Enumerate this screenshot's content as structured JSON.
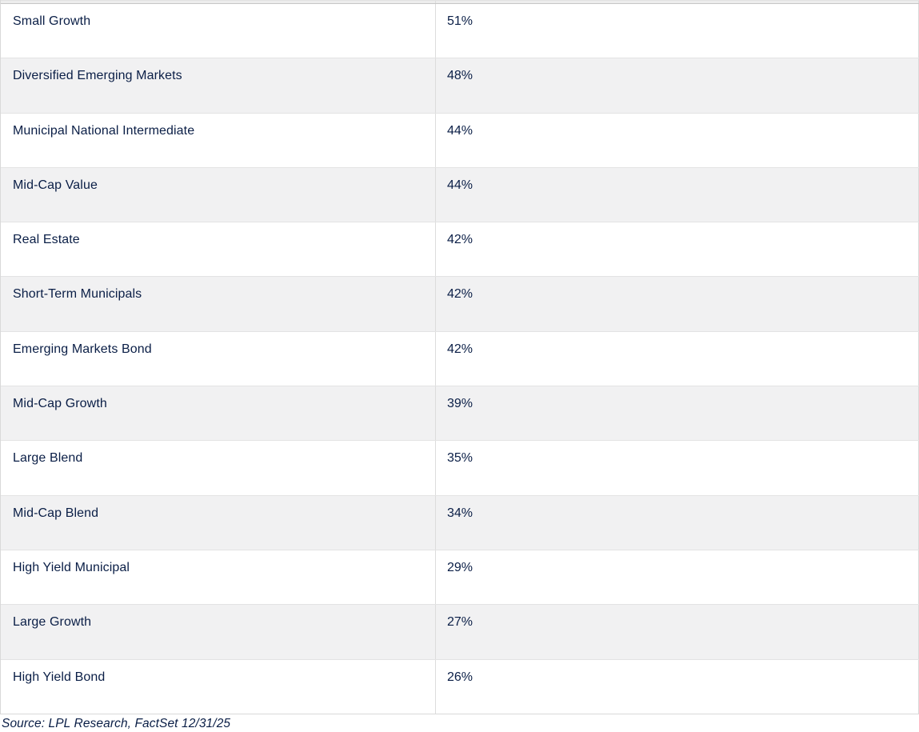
{
  "chart_data": {
    "type": "table",
    "rows": [
      {
        "category": "Small Growth",
        "value": "51%",
        "value_num": 51
      },
      {
        "category": "Diversified Emerging Markets",
        "value": "48%",
        "value_num": 48
      },
      {
        "category": "Municipal National Intermediate",
        "value": "44%",
        "value_num": 44
      },
      {
        "category": "Mid-Cap Value",
        "value": "44%",
        "value_num": 44
      },
      {
        "category": "Real Estate",
        "value": "42%",
        "value_num": 42
      },
      {
        "category": "Short-Term Municipals",
        "value": "42%",
        "value_num": 42
      },
      {
        "category": "Emerging Markets Bond",
        "value": "42%",
        "value_num": 42
      },
      {
        "category": "Mid-Cap Growth",
        "value": "39%",
        "value_num": 39
      },
      {
        "category": "Large Blend",
        "value": "35%",
        "value_num": 35
      },
      {
        "category": "Mid-Cap Blend",
        "value": "34%",
        "value_num": 34
      },
      {
        "category": "High Yield Municipal",
        "value": "29%",
        "value_num": 29
      },
      {
        "category": "Large Growth",
        "value": "27%",
        "value_num": 27
      },
      {
        "category": "High Yield Bond",
        "value": "26%",
        "value_num": 26
      }
    ],
    "source": "Source: LPL Research, FactSet 12/31/25",
    "layout": {
      "row_striping": "alternating white and light gray, starting white",
      "grid_on": true
    }
  },
  "source_note": "Source: LPL Research, FactSet 12/31/25",
  "colors": {
    "text_navy": "#0a1e46",
    "row_alt_bg": "#f1f1f2",
    "border": "#dcdcdc",
    "header_sliver_bg": "#ededed"
  }
}
